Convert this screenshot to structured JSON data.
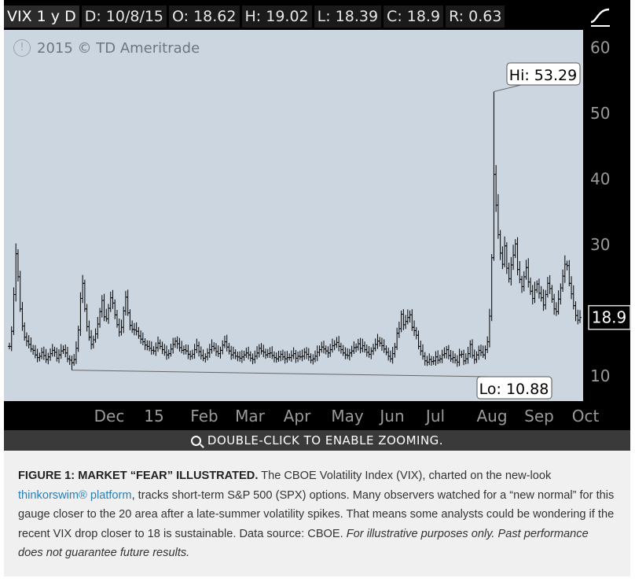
{
  "header": {
    "symbol": "VIX 1 y D",
    "date": "D: 10/8/15",
    "open": "O: 18.62",
    "high": "H: 19.02",
    "low": "L: 18.39",
    "close": "C: 18.9",
    "range": "R: 0.63"
  },
  "watermark": "2015 © TD Ameritrade",
  "zoom_text": "DOUBLE-CLICK TO ENABLE ZOOMING.",
  "icons": {
    "style": "chart-style-icon",
    "info": "info-icon",
    "zoom": "magnifier-icon"
  },
  "colors": {
    "plot_bg": "#ccd6e0",
    "bars": "#000000",
    "panel": "#000000",
    "caption_bg": "#f0f0f0",
    "link": "#2a7fb4"
  },
  "caption": {
    "title": "FIGURE 1: MARKET “FEAR” ILLUSTRATED.",
    "text1": " The CBOE Volatility Index (VIX), charted on the new-look ",
    "link": "thinkorswim® platform",
    "text2": ", tracks short-term S&P 500 (SPX) options. Many observers watched for a “new normal” for this gauge closer to the 20 area after a late-summer volatility spikes. That means some analysts could be wondering if the recent VIX drop closer to 18 is sustainable. Data source:  CBOE. ",
    "disclaimer": "For illustrative purposes only. Past performance does not guarantee future results."
  },
  "chart_data": {
    "type": "ohlc",
    "title": "VIX 1 y D",
    "y_ticks": [
      10,
      20,
      30,
      40,
      50,
      60
    ],
    "y_tick_labels": [
      "10",
      "",
      "30",
      "40",
      "50",
      "60"
    ],
    "ylim": [
      7,
      62
    ],
    "x_labels": [
      "Dec",
      "15",
      "Feb",
      "Mar",
      "Apr",
      "May",
      "Jun",
      "Jul",
      "Aug",
      "Sep",
      "Oct"
    ],
    "last_price": 18.9,
    "hi_label": "Hi: 53.29",
    "lo_label": "Lo: 10.88",
    "hi_value": 53.29,
    "lo_value": 10.88,
    "closes": [
      14.5,
      16.8,
      22.4,
      28.6,
      25.1,
      20.2,
      17.6,
      15.9,
      15.3,
      14.8,
      14.1,
      13.9,
      13.2,
      12.8,
      13.0,
      13.6,
      13.1,
      12.5,
      12.9,
      13.4,
      13.9,
      13.6,
      12.7,
      13.2,
      13.8,
      14.0,
      13.5,
      12.6,
      12.4,
      12.0,
      12.5,
      14.2,
      17.0,
      21.8,
      24.1,
      20.2,
      17.5,
      15.9,
      14.8,
      15.5,
      16.4,
      17.9,
      19.8,
      21.5,
      19.0,
      18.7,
      20.3,
      21.9,
      21.1,
      19.3,
      17.8,
      16.7,
      17.4,
      19.9,
      22.0,
      19.6,
      17.7,
      17.1,
      17.0,
      16.8,
      16.1,
      15.6,
      15.2,
      14.7,
      14.5,
      14.2,
      13.9,
      13.8,
      14.3,
      15.0,
      14.5,
      14.0,
      13.6,
      13.2,
      13.4,
      14.1,
      14.8,
      15.3,
      14.9,
      14.3,
      13.9,
      14.0,
      13.8,
      13.3,
      13.0,
      13.3,
      14.0,
      14.6,
      13.7,
      13.1,
      12.7,
      12.9,
      13.5,
      14.0,
      14.5,
      14.2,
      13.7,
      13.4,
      13.9,
      14.7,
      15.2,
      14.4,
      13.8,
      13.2,
      13.5,
      13.0,
      12.9,
      12.7,
      12.9,
      13.2,
      13.5,
      13.2,
      12.7,
      12.5,
      13.0,
      13.5,
      14.2,
      13.8,
      13.6,
      13.2,
      13.4,
      13.5,
      13.1,
      12.8,
      12.6,
      12.9,
      13.3,
      12.9,
      12.6,
      12.8,
      12.8,
      13.1,
      13.4,
      12.7,
      13.0,
      12.9,
      13.0,
      13.6,
      13.3,
      12.9,
      12.4,
      12.6,
      13.0,
      13.6,
      14.0,
      14.4,
      14.1,
      13.8,
      13.5,
      14.0,
      14.6,
      14.8,
      15.1,
      14.5,
      14.0,
      13.5,
      13.2,
      13.1,
      13.5,
      13.8,
      14.3,
      14.4,
      14.9,
      14.2,
      14.6,
      14.0,
      13.6,
      13.3,
      13.8,
      14.2,
      14.8,
      15.3,
      15.0,
      14.6,
      14.1,
      13.6,
      13.0,
      12.6,
      13.4,
      14.4,
      16.5,
      17.2,
      19.4,
      17.8,
      18.3,
      18.9,
      19.3,
      17.4,
      16.9,
      16.2,
      14.5,
      13.8,
      13.0,
      12.3,
      12.1,
      12.5,
      12.2,
      12.3,
      12.9,
      12.4,
      12.6,
      13.2,
      13.4,
      14.0,
      13.1,
      12.6,
      12.8,
      12.4,
      12.1,
      13.2,
      13.3,
      12.3,
      12.6,
      13.4,
      14.8,
      13.1,
      12.5,
      13.2,
      13.9,
      13.6,
      13.2,
      14.0,
      15.2,
      19.1,
      28.0,
      40.7,
      36.0,
      31.5,
      28.7,
      27.0,
      29.8,
      26.4,
      24.8,
      26.9,
      28.4,
      30.1,
      26.2,
      24.7,
      23.6,
      25.1,
      26.5,
      24.3,
      22.9,
      21.8,
      23.1,
      24.0,
      22.6,
      21.9,
      20.8,
      22.4,
      24.1,
      23.3,
      21.7,
      20.2,
      19.8,
      21.7,
      23.4,
      25.2,
      27.0,
      26.8,
      24.1,
      22.5,
      20.7,
      19.2,
      18.5,
      18.9
    ]
  }
}
